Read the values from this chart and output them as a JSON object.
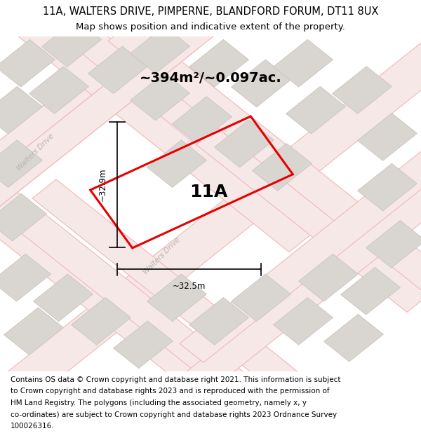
{
  "title_line1": "11A, WALTERS DRIVE, PIMPERNE, BLANDFORD FORUM, DT11 8UX",
  "title_line2": "Map shows position and indicative extent of the property.",
  "area_label": "~394m²/~0.097ac.",
  "plot_label": "11A",
  "dim_width": "~32.5m",
  "dim_height": "~32.9m",
  "footer_lines": [
    "Contains OS data © Crown copyright and database right 2021. This information is subject",
    "to Crown copyright and database rights 2023 and is reproduced with the permission of",
    "HM Land Registry. The polygons (including the associated geometry, namely x, y",
    "co-ordinates) are subject to Crown copyright and database rights 2023 Ordnance Survey",
    "100026316."
  ],
  "bg_color": "#f2f0ee",
  "road_stroke": "#f0b8b8",
  "road_fill": "#f7e8e8",
  "building_color": "#d9d6d1",
  "building_edge": "#c8c5c0",
  "plot_color": "#e60000",
  "street_label_color": "#b8b4b0",
  "title_fontsize": 10.5,
  "subtitle_fontsize": 9.5,
  "footer_fontsize": 7.5,
  "area_fontsize": 14,
  "plot_label_fontsize": 18,
  "dim_fontsize": 8.5
}
